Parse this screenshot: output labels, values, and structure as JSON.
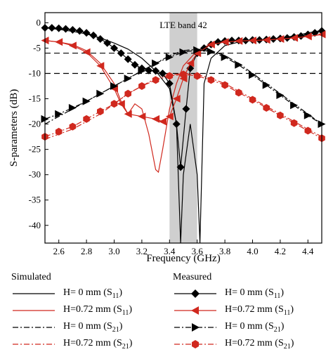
{
  "chart_data": {
    "type": "line",
    "xlabel": "Frequency (GHz)",
    "ylabel": "S-parameters (dB)",
    "xlim": [
      2.5,
      4.5
    ],
    "ylim": [
      -43.5,
      2
    ],
    "xticks": [
      2.6,
      2.8,
      3.0,
      3.2,
      3.4,
      3.6,
      3.8,
      4.0,
      4.2,
      4.4
    ],
    "yticks": [
      0,
      -5,
      -10,
      -15,
      -20,
      -25,
      -30,
      -35,
      -40
    ],
    "band": {
      "label": "LTE band 42",
      "x": [
        3.4,
        3.6
      ],
      "color": "#cfcfcf"
    },
    "reference_lines": [
      -6,
      -10
    ],
    "series": [
      {
        "name": "H= 0 mm",
        "sub": "11",
        "group": "Simulated",
        "color": "#000000",
        "style": "solid",
        "marker": "none",
        "x": [
          2.5,
          2.6,
          2.7,
          2.8,
          2.9,
          3.0,
          3.1,
          3.2,
          3.3,
          3.4,
          3.45,
          3.48,
          3.5,
          3.55,
          3.6,
          3.62,
          3.65,
          3.7,
          3.8,
          3.9,
          4.0,
          4.1,
          4.2,
          4.3,
          4.4,
          4.5
        ],
        "y": [
          -1.0,
          -1.3,
          -1.7,
          -2.2,
          -3.0,
          -4.0,
          -5.2,
          -7.0,
          -9.5,
          -13.0,
          -20.0,
          -44.0,
          -30.0,
          -20.0,
          -30.0,
          -44.0,
          -12.0,
          -7.0,
          -4.5,
          -3.8,
          -3.5,
          -3.3,
          -3.0,
          -2.6,
          -2.0,
          -1.5
        ]
      },
      {
        "name": "H=0.72 mm",
        "sub": "11",
        "group": "Simulated",
        "color": "#d0281e",
        "style": "solid",
        "marker": "none",
        "x": [
          2.5,
          2.6,
          2.7,
          2.8,
          2.9,
          3.0,
          3.05,
          3.1,
          3.15,
          3.2,
          3.25,
          3.3,
          3.32,
          3.35,
          3.4,
          3.45,
          3.5,
          3.6,
          3.7,
          3.8,
          3.9,
          4.0,
          4.1,
          4.2,
          4.3,
          4.4,
          4.5
        ],
        "y": [
          -3.5,
          -3.8,
          -4.3,
          -5.5,
          -8.0,
          -12.0,
          -15.5,
          -18.0,
          -16.0,
          -17.0,
          -22.0,
          -29.0,
          -29.5,
          -25.0,
          -17.0,
          -12.0,
          -8.5,
          -5.5,
          -4.2,
          -3.8,
          -3.6,
          -3.5,
          -3.4,
          -3.2,
          -3.0,
          -2.7,
          -2.3
        ]
      },
      {
        "name": "H= 0 mm",
        "sub": "21",
        "group": "Simulated",
        "color": "#000000",
        "style": "dashdot",
        "marker": "none",
        "x": [
          2.5,
          2.6,
          2.7,
          2.8,
          2.9,
          3.0,
          3.1,
          3.2,
          3.3,
          3.4,
          3.5,
          3.6,
          3.7,
          3.8,
          3.9,
          4.0,
          4.1,
          4.2,
          4.3,
          4.4,
          4.5
        ],
        "y": [
          -20.0,
          -18.5,
          -17.0,
          -15.5,
          -14.0,
          -12.5,
          -11.0,
          -9.5,
          -8.0,
          -6.5,
          -5.5,
          -5.2,
          -5.5,
          -6.5,
          -8.0,
          -10.0,
          -12.0,
          -14.0,
          -16.0,
          -18.0,
          -20.0
        ]
      },
      {
        "name": "H=0.72 mm",
        "sub": "21",
        "group": "Simulated",
        "color": "#d0281e",
        "style": "dashdot",
        "marker": "none",
        "x": [
          2.5,
          2.6,
          2.7,
          2.8,
          2.9,
          3.0,
          3.1,
          3.2,
          3.3,
          3.4,
          3.5,
          3.6,
          3.7,
          3.8,
          3.9,
          4.0,
          4.1,
          4.2,
          4.3,
          4.4,
          4.5
        ],
        "y": [
          -23.0,
          -22.0,
          -21.0,
          -19.5,
          -18.0,
          -16.0,
          -14.0,
          -12.5,
          -11.0,
          -10.3,
          -10.0,
          -10.2,
          -11.0,
          -12.0,
          -13.5,
          -15.0,
          -16.5,
          -18.0,
          -19.5,
          -21.0,
          -22.5
        ]
      },
      {
        "name": "H= 0 mm",
        "sub": "11",
        "group": "Measured",
        "color": "#000000",
        "style": "solid",
        "marker": "diamond",
        "x": [
          2.5,
          2.55,
          2.6,
          2.65,
          2.7,
          2.75,
          2.8,
          2.85,
          2.9,
          2.95,
          3.0,
          3.05,
          3.1,
          3.15,
          3.2,
          3.25,
          3.3,
          3.35,
          3.4,
          3.45,
          3.48,
          3.52,
          3.55,
          3.6,
          3.65,
          3.7,
          3.75,
          3.8,
          3.85,
          3.9,
          3.95,
          4.0,
          4.05,
          4.1,
          4.15,
          4.2,
          4.25,
          4.3,
          4.35,
          4.4,
          4.45,
          4.5
        ],
        "y": [
          -1.0,
          -1.0,
          -1.1,
          -1.2,
          -1.4,
          -1.6,
          -2.0,
          -2.5,
          -3.2,
          -4.0,
          -5.0,
          -6.0,
          -7.2,
          -8.3,
          -9.0,
          -9.4,
          -9.5,
          -10.0,
          -12.0,
          -20.0,
          -28.5,
          -17.0,
          -9.0,
          -6.0,
          -5.0,
          -4.3,
          -3.8,
          -3.6,
          -3.5,
          -3.5,
          -3.5,
          -3.4,
          -3.4,
          -3.3,
          -3.2,
          -3.1,
          -3.0,
          -2.8,
          -2.6,
          -2.3,
          -2.0,
          -1.6
        ]
      },
      {
        "name": "H=0.72 mm",
        "sub": "11",
        "group": "Measured",
        "color": "#d0281e",
        "style": "solid",
        "marker": "triangle-left",
        "x": [
          2.5,
          2.6,
          2.7,
          2.8,
          2.9,
          3.0,
          3.05,
          3.1,
          3.2,
          3.3,
          3.35,
          3.4,
          3.45,
          3.5,
          3.55,
          3.6,
          3.7,
          3.8,
          3.9,
          4.0,
          4.1,
          4.2,
          4.3,
          4.4,
          4.5
        ],
        "y": [
          -3.5,
          -3.8,
          -4.5,
          -5.8,
          -8.5,
          -13.0,
          -16.0,
          -18.0,
          -18.5,
          -19.0,
          -19.5,
          -18.5,
          -15.0,
          -11.0,
          -8.0,
          -6.0,
          -4.3,
          -3.8,
          -3.6,
          -3.5,
          -3.4,
          -3.2,
          -3.0,
          -2.7,
          -2.3
        ]
      },
      {
        "name": "H= 0 mm",
        "sub": "21",
        "group": "Measured",
        "color": "#000000",
        "style": "dashdot",
        "marker": "triangle-right",
        "x": [
          2.5,
          2.6,
          2.7,
          2.8,
          2.9,
          3.0,
          3.1,
          3.2,
          3.3,
          3.4,
          3.5,
          3.6,
          3.7,
          3.8,
          3.9,
          4.0,
          4.1,
          4.2,
          4.3,
          4.4,
          4.5
        ],
        "y": [
          -19.0,
          -18.0,
          -16.8,
          -15.5,
          -14.0,
          -12.5,
          -11.0,
          -9.5,
          -8.0,
          -6.8,
          -5.8,
          -5.4,
          -5.7,
          -6.8,
          -8.3,
          -10.3,
          -12.3,
          -14.3,
          -16.3,
          -18.3,
          -20.0
        ]
      },
      {
        "name": "H=0.72 mm",
        "sub": "21",
        "group": "Measured",
        "color": "#d0281e",
        "style": "dashdot",
        "marker": "hexagon",
        "x": [
          2.5,
          2.6,
          2.7,
          2.8,
          2.9,
          3.0,
          3.1,
          3.2,
          3.3,
          3.4,
          3.5,
          3.6,
          3.7,
          3.8,
          3.9,
          4.0,
          4.1,
          4.2,
          4.3,
          4.4,
          4.5
        ],
        "y": [
          -22.5,
          -21.5,
          -20.5,
          -19.0,
          -17.5,
          -16.0,
          -14.0,
          -12.5,
          -11.3,
          -10.5,
          -10.2,
          -10.5,
          -11.3,
          -12.3,
          -13.8,
          -15.2,
          -16.8,
          -18.3,
          -19.8,
          -21.3,
          -22.8
        ]
      }
    ]
  },
  "legend": {
    "simulated_title": "Simulated",
    "measured_title": "Measured",
    "items": [
      {
        "label": "H= 0 mm (S",
        "sub": "11",
        "close": ")"
      },
      {
        "label": "H=0.72 mm (S",
        "sub": "11",
        "close": ")"
      },
      {
        "label": "H= 0 mm (S",
        "sub": "21",
        "close": ")"
      },
      {
        "label": "H=0.72 mm (S",
        "sub": "21",
        "close": ")"
      }
    ]
  }
}
